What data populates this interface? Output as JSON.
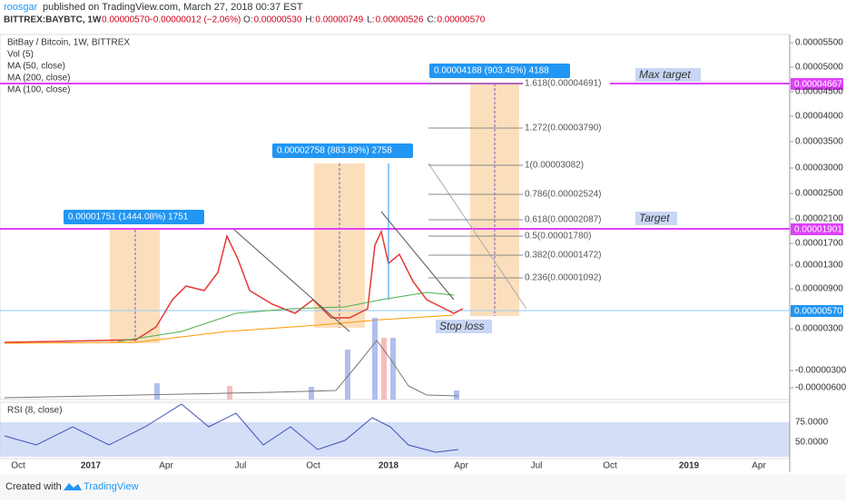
{
  "header": {
    "author": "roosgar",
    "published": "published on TradingView.com, March 27, 2018 00:37 EST"
  },
  "quote": {
    "symbol": "BITTREX:BAYBTC, 1W",
    "last": "0.00000570",
    "change": "−0.00000012 (−2.06%)",
    "fields": [
      {
        "label": "O:",
        "value": "0.00000530"
      },
      {
        "label": "H:",
        "value": "0.00000749"
      },
      {
        "label": "L:",
        "value": "0.00000526"
      },
      {
        "label": "C:",
        "value": "0.00000570"
      }
    ]
  },
  "legend": [
    "BitBay / Bitcoin, 1W, BITTREX",
    "Vol (5)",
    "MA (50, close)",
    "MA (200, close)",
    "MA (100, close)"
  ],
  "price_axis": [
    "0.00005500",
    "0.00005000",
    "0.00004500",
    "0.00004000",
    "0.00003500",
    "0.00003000",
    "0.00002500",
    "0.00002100",
    "0.00001700",
    "0.00001300",
    "0.00000900",
    "0.00000300",
    "-0.00000300",
    "-0.00000600"
  ],
  "price_markers": {
    "max_target": "0.00004667",
    "target": "0.00001901",
    "last": "0.00000570"
  },
  "fib_levels": [
    "1.618(0.00004691)",
    "1.272(0.00003790)",
    "1(0.00003082)",
    "0.786(0.00002524)",
    "0.618(0.00002087)",
    "0.5(0.00001780)",
    "0.382(0.00001472)",
    "0.236(0.00001092)"
  ],
  "measures": [
    "0.00001751 (1444.08%) 1751",
    "0.00002758 (883.89%) 2758",
    "0.00004188 (903.45%) 4188"
  ],
  "annotations": {
    "max_target": "Max target",
    "target": "Target",
    "stop_loss": "Stop loss"
  },
  "rsi": {
    "title": "RSI (8, close)",
    "ticks": [
      "75.0000",
      "50.0000"
    ]
  },
  "time_axis": [
    "Oct",
    "2017",
    "Apr",
    "Jul",
    "Oct",
    "2018",
    "Apr",
    "Jul",
    "Oct",
    "2019",
    "Apr"
  ],
  "footer": {
    "created": "Created with",
    "brand": "TradingView"
  }
}
